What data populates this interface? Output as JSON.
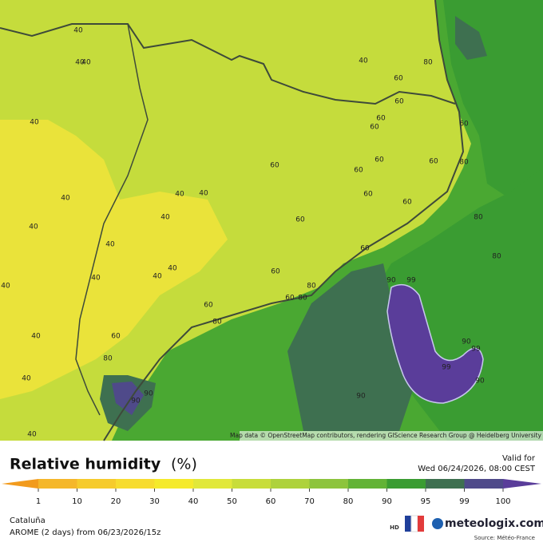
{
  "map": {
    "contour_labels": [
      "40",
      "40",
      "40",
      "40",
      "40",
      "40",
      "40",
      "40",
      "40",
      "40",
      "40",
      "40",
      "40",
      "40",
      "40",
      "40",
      "40",
      "40",
      "60",
      "60",
      "60",
      "60",
      "60",
      "60",
      "60",
      "60",
      "60",
      "60",
      "60",
      "60",
      "60",
      "60",
      "60",
      "60",
      "60",
      "80",
      "80",
      "80",
      "80",
      "80",
      "80",
      "80",
      "80",
      "90",
      "90",
      "90",
      "90",
      "90",
      "90",
      "99",
      "99",
      "99"
    ],
    "attribution": "Map data © OpenStreetMap contributors, rendering GIScience Research Group @ Heidelberg University"
  },
  "legend": {
    "title": "Relative humidity",
    "unit": "(%)",
    "ticks": [
      1,
      10,
      20,
      30,
      40,
      50,
      60,
      70,
      80,
      90,
      95,
      99,
      100
    ],
    "colors": [
      "#f29b1d",
      "#f5b72a",
      "#f6cb2c",
      "#f7dc2f",
      "#f5ea2b",
      "#e1e83a",
      "#c8dd3a",
      "#aed23c",
      "#8dc43d",
      "#62b336",
      "#3a9c32",
      "#3e7050",
      "#4f4a8a",
      "#5a3d9a"
    ]
  },
  "footer": {
    "valid_label": "Valid for",
    "valid_time": "Wed 06/24/2026, 08:00 CEST",
    "region": "Cataluña",
    "model": "AROME (2 days)  from  06/23/2026/15z",
    "hd": "HD",
    "brand": "meteologix.com",
    "source": "Source: Météo-France"
  }
}
